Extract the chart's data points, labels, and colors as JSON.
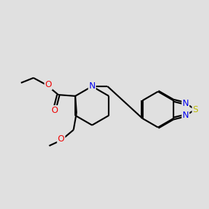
{
  "bg_color": "#e0e0e0",
  "bond_color": "#000000",
  "bond_width": 1.6,
  "atom_colors": {
    "N": "#0000ee",
    "O": "#ee0000",
    "S": "#bbbb00",
    "C": "#000000"
  },
  "font_size": 9.0
}
